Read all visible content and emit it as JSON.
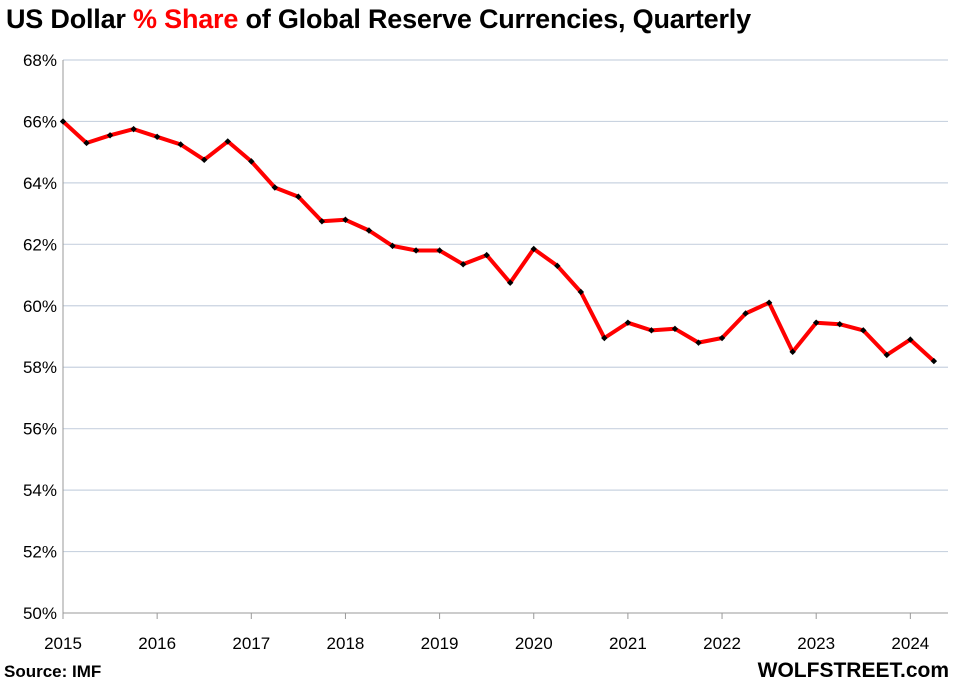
{
  "title": {
    "prefix": "US Dollar ",
    "highlight": "% Share",
    "suffix": " of Global Reserve Currencies, Quarterly"
  },
  "source": "Source: IMF",
  "credit": "WOLFSTREET.com",
  "colors": {
    "line": "#ff0000",
    "marker": "#000000",
    "grid": "#c9d3e0",
    "highlight": "#ff0000"
  },
  "chart_data": {
    "type": "line",
    "title": "US Dollar % Share of Global Reserve Currencies, Quarterly",
    "xlabel": "",
    "ylabel": "",
    "ylim": [
      50,
      68
    ],
    "xlim": [
      2015,
      2024.4
    ],
    "y_ticks": [
      50,
      52,
      54,
      56,
      58,
      60,
      62,
      64,
      66,
      68
    ],
    "y_tick_labels": [
      "50%",
      "52%",
      "54%",
      "56%",
      "58%",
      "60%",
      "62%",
      "64%",
      "66%",
      "68%"
    ],
    "x_ticks": [
      2015,
      2016,
      2017,
      2018,
      2019,
      2020,
      2021,
      2022,
      2023,
      2024
    ],
    "x_tick_labels": [
      "2015",
      "2016",
      "2017",
      "2018",
      "2019",
      "2020",
      "2021",
      "2022",
      "2023",
      "2024"
    ],
    "grid": true,
    "series": [
      {
        "name": "US Dollar % Share",
        "x": [
          2015,
          2015.25,
          2015.5,
          2015.75,
          2016,
          2016.25,
          2016.5,
          2016.75,
          2017,
          2017.25,
          2017.5,
          2017.75,
          2018,
          2018.25,
          2018.5,
          2018.75,
          2019,
          2019.25,
          2019.5,
          2019.75,
          2020,
          2020.25,
          2020.5,
          2020.75,
          2021,
          2021.25,
          2021.5,
          2021.75,
          2022,
          2022.25,
          2022.5,
          2022.75,
          2023,
          2023.25,
          2023.5,
          2023.75,
          2024,
          2024.25
        ],
        "values": [
          66.0,
          65.3,
          65.55,
          65.75,
          65.5,
          65.25,
          64.75,
          65.35,
          64.7,
          63.85,
          63.55,
          62.75,
          62.8,
          62.45,
          61.95,
          61.8,
          61.8,
          61.35,
          61.65,
          60.75,
          61.85,
          61.3,
          60.45,
          58.95,
          59.45,
          59.2,
          59.25,
          58.8,
          58.95,
          59.75,
          60.1,
          58.5,
          59.45,
          59.4,
          59.2,
          58.4,
          58.9,
          58.2
        ]
      }
    ]
  }
}
